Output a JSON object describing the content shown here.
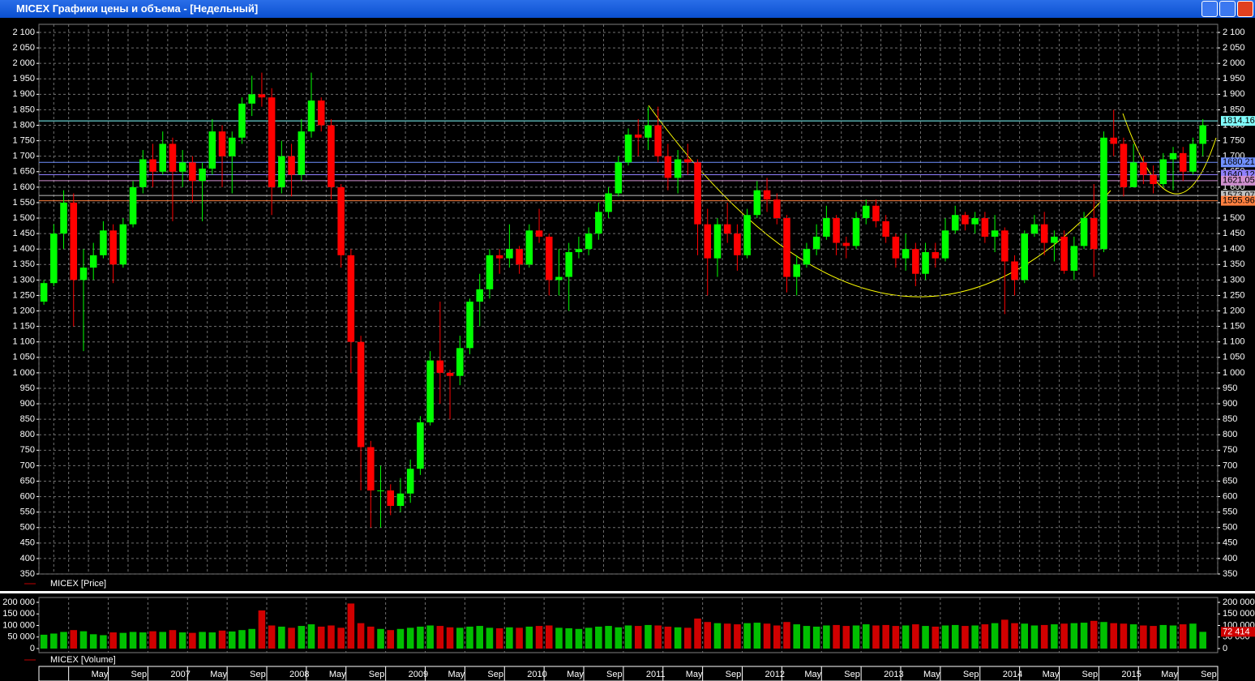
{
  "window": {
    "title": "MICEX Графики цены и объема - [Недельный]"
  },
  "chart_data": [
    {
      "type": "candlestick",
      "legend": "MICEX [Price]",
      "up_color": "#00ff00",
      "down_color": "#ff0000",
      "grid": true,
      "ylim": [
        350,
        2100
      ],
      "yticks": [
        350,
        400,
        450,
        500,
        550,
        600,
        650,
        700,
        750,
        800,
        850,
        900,
        950,
        {
          "value": 1000,
          "label": "1 000"
        },
        {
          "value": 1050,
          "label": "1 050"
        },
        {
          "value": 1100,
          "label": "1 100"
        },
        {
          "value": 1150,
          "label": "1 150"
        },
        {
          "value": 1200,
          "label": "1 200"
        },
        {
          "value": 1250,
          "label": "1 250"
        },
        {
          "value": 1300,
          "label": "1 300"
        },
        {
          "value": 1350,
          "label": "1 350"
        },
        {
          "value": 1400,
          "label": "1 400"
        },
        {
          "value": 1450,
          "label": "1 450"
        },
        {
          "value": 1500,
          "label": "1 500"
        },
        {
          "value": 1550,
          "label": "1 550"
        },
        {
          "value": 1600,
          "label": "1 600"
        },
        {
          "value": 1650,
          "label": "1 650"
        },
        {
          "value": 1700,
          "label": "1 700"
        },
        {
          "value": 1750,
          "label": "1 750"
        },
        {
          "value": 1800,
          "label": "1 800"
        },
        {
          "value": 1850,
          "label": "1 850"
        },
        {
          "value": 1900,
          "label": "1 900"
        },
        {
          "value": 1950,
          "label": "1 950"
        },
        {
          "value": 2000,
          "label": "2 000"
        },
        {
          "value": 2050,
          "label": "2 050"
        },
        {
          "value": 2100,
          "label": "2 100"
        }
      ],
      "levels": [
        {
          "value": 1814.16,
          "color": "#80ffff"
        },
        {
          "value": 1680.21,
          "color": "#7090ff"
        },
        {
          "value": 1640.12,
          "color": "#9080ff"
        },
        {
          "value": 1621.05,
          "color": "#d090d0"
        },
        {
          "value": 1573.07,
          "color": "#c0c0c0"
        },
        {
          "value": 1555.96,
          "color": "#ff8040"
        }
      ],
      "open": [
        1230,
        1290,
        1450,
        1550,
        1300,
        1340,
        1380,
        1460,
        1350,
        1480,
        1600,
        1690,
        1650,
        1740,
        1650,
        1680,
        1620,
        1660,
        1780,
        1700,
        1760,
        1870,
        1900,
        1890,
        1600,
        1700,
        1640,
        1780,
        1880,
        1800,
        1600,
        1380,
        1100,
        760,
        620,
        620,
        570,
        610,
        690,
        840,
        1040,
        1000,
        990,
        1080,
        1230,
        1270,
        1380,
        1370,
        1400,
        1350,
        1460,
        1440,
        1300,
        1310,
        1390,
        1400,
        1450,
        1520,
        1580,
        1680,
        1770,
        1760,
        1800,
        1700,
        1630,
        1690,
        1680,
        1480,
        1370,
        1480,
        1450,
        1380,
        1510,
        1590,
        1560,
        1500,
        1310,
        1350,
        1400,
        1440,
        1500,
        1420,
        1410,
        1500,
        1540,
        1490,
        1440,
        1370,
        1400,
        1320,
        1390,
        1370,
        1460,
        1510,
        1480,
        1500,
        1440,
        1460,
        1360,
        1300,
        1450,
        1480,
        1420,
        1440,
        1330,
        1410,
        1500,
        1400,
        1760,
        1740,
        1600,
        1680,
        1640,
        1610,
        1690,
        1710,
        1650,
        1740
      ],
      "high": [
        1300,
        1480,
        1590,
        1580,
        1400,
        1420,
        1490,
        1480,
        1500,
        1620,
        1720,
        1740,
        1780,
        1760,
        1720,
        1700,
        1680,
        1820,
        1800,
        1780,
        1890,
        1960,
        1970,
        1920,
        1750,
        1740,
        1820,
        1970,
        1890,
        1820,
        1610,
        1400,
        1120,
        780,
        700,
        640,
        660,
        720,
        860,
        1070,
        1230,
        1010,
        1120,
        1240,
        1320,
        1400,
        1400,
        1480,
        1410,
        1480,
        1530,
        1450,
        1400,
        1420,
        1440,
        1470,
        1550,
        1600,
        1700,
        1790,
        1820,
        1860,
        1860,
        1740,
        1720,
        1740,
        1690,
        1530,
        1500,
        1550,
        1480,
        1530,
        1620,
        1630,
        1580,
        1510,
        1380,
        1420,
        1480,
        1540,
        1510,
        1440,
        1520,
        1560,
        1560,
        1510,
        1450,
        1450,
        1420,
        1420,
        1420,
        1500,
        1540,
        1520,
        1520,
        1520,
        1510,
        1470,
        1380,
        1460,
        1510,
        1520,
        1460,
        1460,
        1440,
        1520,
        1610,
        1780,
        1850,
        1760,
        1740,
        1700,
        1670,
        1710,
        1730,
        1730,
        1760,
        1820
      ],
      "low": [
        1220,
        1280,
        1400,
        1150,
        1070,
        1300,
        1370,
        1290,
        1340,
        1470,
        1580,
        1600,
        1640,
        1490,
        1600,
        1550,
        1490,
        1640,
        1600,
        1580,
        1740,
        1830,
        1860,
        1510,
        1580,
        1570,
        1620,
        1760,
        1780,
        1560,
        1340,
        1000,
        620,
        500,
        500,
        540,
        550,
        580,
        670,
        830,
        900,
        850,
        960,
        1060,
        1150,
        1240,
        1320,
        1340,
        1320,
        1340,
        1420,
        1250,
        1250,
        1200,
        1370,
        1380,
        1430,
        1500,
        1570,
        1670,
        1700,
        1720,
        1680,
        1590,
        1580,
        1640,
        1380,
        1250,
        1310,
        1420,
        1330,
        1370,
        1500,
        1520,
        1480,
        1260,
        1250,
        1340,
        1380,
        1430,
        1380,
        1370,
        1400,
        1480,
        1470,
        1420,
        1340,
        1330,
        1280,
        1300,
        1340,
        1360,
        1450,
        1460,
        1450,
        1420,
        1390,
        1190,
        1250,
        1290,
        1440,
        1380,
        1360,
        1320,
        1300,
        1400,
        1310,
        1390,
        1700,
        1570,
        1600,
        1610,
        1580,
        1600,
        1590,
        1620,
        1640,
        1700
      ],
      "close": [
        1290,
        1450,
        1550,
        1300,
        1340,
        1380,
        1460,
        1350,
        1480,
        1600,
        1690,
        1650,
        1740,
        1650,
        1680,
        1620,
        1660,
        1780,
        1700,
        1760,
        1870,
        1900,
        1890,
        1600,
        1700,
        1640,
        1780,
        1880,
        1800,
        1600,
        1380,
        1100,
        760,
        620,
        620,
        570,
        610,
        690,
        840,
        1040,
        1000,
        990,
        1080,
        1230,
        1270,
        1380,
        1370,
        1400,
        1350,
        1460,
        1440,
        1300,
        1310,
        1390,
        1400,
        1450,
        1520,
        1580,
        1680,
        1770,
        1760,
        1800,
        1700,
        1630,
        1690,
        1680,
        1480,
        1370,
        1480,
        1450,
        1380,
        1510,
        1590,
        1560,
        1500,
        1310,
        1350,
        1400,
        1440,
        1500,
        1420,
        1410,
        1500,
        1540,
        1490,
        1440,
        1370,
        1400,
        1320,
        1390,
        1370,
        1460,
        1510,
        1480,
        1500,
        1440,
        1460,
        1360,
        1300,
        1450,
        1480,
        1420,
        1440,
        1330,
        1410,
        1500,
        1400,
        1760,
        1740,
        1600,
        1680,
        1640,
        1610,
        1690,
        1710,
        1650,
        1740,
        1800
      ]
    },
    {
      "type": "bar",
      "legend": "MICEX [Volume]",
      "up_color": "#00c000",
      "down_color": "#d00000",
      "ylim": [
        0,
        200000
      ],
      "yticks": [
        0,
        {
          "value": 50000,
          "label": "50 000"
        },
        {
          "value": 100000,
          "label": "100 000"
        },
        {
          "value": 150000,
          "label": "150 000"
        },
        {
          "value": 200000,
          "label": "200 000"
        }
      ],
      "values": [
        60000,
        65000,
        72000,
        80000,
        75000,
        62000,
        58000,
        70000,
        68000,
        72000,
        70000,
        75000,
        72000,
        80000,
        70000,
        68000,
        72000,
        70000,
        78000,
        74000,
        80000,
        85000,
        165000,
        100000,
        95000,
        90000,
        98000,
        105000,
        95000,
        100000,
        90000,
        195000,
        110000,
        95000,
        85000,
        80000,
        85000,
        90000,
        95000,
        100000,
        98000,
        92000,
        90000,
        95000,
        98000,
        90000,
        88000,
        92000,
        90000,
        95000,
        98000,
        100000,
        90000,
        88000,
        85000,
        90000,
        95000,
        98000,
        92000,
        100000,
        98000,
        102000,
        100000,
        95000,
        92000,
        90000,
        130000,
        115000,
        110000,
        108000,
        105000,
        110000,
        112000,
        108000,
        100000,
        115000,
        105000,
        98000,
        95000,
        100000,
        102000,
        98000,
        100000,
        105000,
        100000,
        102000,
        98000,
        100000,
        105000,
        98000,
        95000,
        100000,
        102000,
        98000,
        100000,
        105000,
        110000,
        125000,
        110000,
        108000,
        100000,
        102000,
        105000,
        108000,
        110000,
        112000,
        120000,
        115000,
        110000,
        108000,
        105000,
        100000,
        98000,
        102000,
        100000,
        105000,
        108000,
        72414
      ],
      "value_labels": {
        "117": "72 414"
      },
      "x_labels": [
        null,
        "May",
        "Sep",
        "2007",
        "May",
        "Sep",
        "2008",
        "May",
        "Sep",
        "2009",
        "May",
        "Sep",
        "2010",
        "May",
        "Sep",
        "2011",
        "May",
        "Sep",
        "2012",
        "May",
        "Sep",
        "2013",
        "May",
        "Sep",
        "2014",
        "May",
        "Sep",
        "2015",
        "May",
        "Sep"
      ]
    }
  ]
}
